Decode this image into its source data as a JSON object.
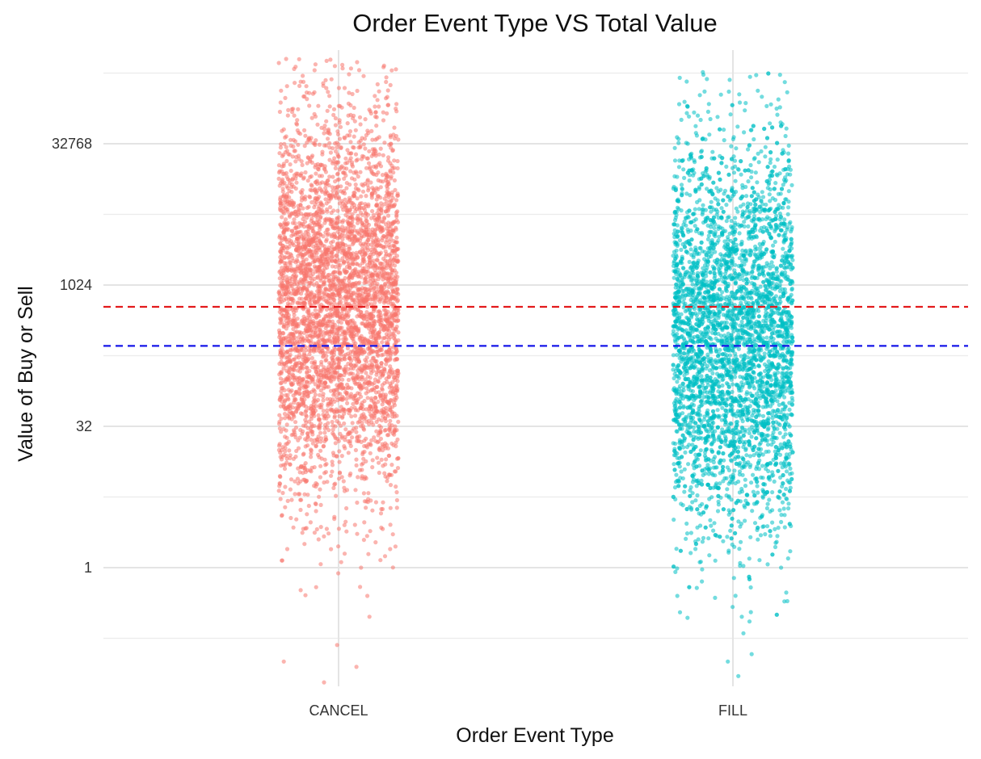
{
  "chart_data": {
    "type": "scatter",
    "title": "Order Event Type VS Total Value",
    "xlabel": "Order Event Type",
    "ylabel": "Value of Buy or Sell",
    "categories": [
      "CANCEL",
      "FILL"
    ],
    "y_scale": "log2",
    "y_ticks": [
      1,
      32,
      1024,
      32768
    ],
    "y_tick_labels": [
      "1",
      "32",
      "1024",
      "32768"
    ],
    "ylim": [
      0.05,
      380000
    ],
    "grid": true,
    "legend": "none",
    "jitter": true,
    "series": [
      {
        "category": "CANCEL",
        "color": "#F8766D",
        "point_alpha": 0.55,
        "median": 640,
        "min": 0.06,
        "max": 262144,
        "dense_range": [
          8,
          32768
        ],
        "sample_points": [
          262144,
          180000,
          150000,
          120000,
          90000,
          65536,
          45000,
          32768,
          1024,
          512,
          256,
          100,
          32,
          16,
          4,
          2,
          1,
          0.5,
          0.3,
          0.15,
          0.1,
          0.06
        ]
      },
      {
        "category": "FILL",
        "color": "#00BFC4",
        "point_alpha": 0.55,
        "median": 280,
        "min": 0.07,
        "max": 190000,
        "dense_range": [
          4,
          16384
        ],
        "sample_points": [
          190000,
          160000,
          110000,
          80000,
          60000,
          40000,
          32768,
          1024,
          512,
          256,
          100,
          32,
          16,
          4,
          2,
          1,
          0.5,
          0.3,
          0.2,
          0.12,
          0.1,
          0.07
        ]
      }
    ],
    "reference_lines": [
      {
        "value": 600,
        "color": "#E31A1C",
        "style": "dashed"
      },
      {
        "value": 230,
        "color": "#1515E8",
        "style": "dashed"
      }
    ]
  }
}
